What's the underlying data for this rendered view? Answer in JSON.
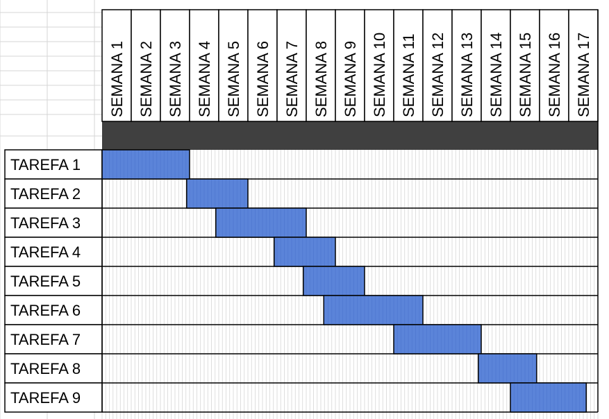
{
  "chart_data": {
    "type": "gantt",
    "weeks": [
      "SEMANA 1",
      "SEMANA 2",
      "SEMANA 3",
      "SEMANA 4",
      "SEMANA 5",
      "SEMANA 6",
      "SEMANA 7",
      "SEMANA 8",
      "SEMANA 9",
      "SEMANA 10",
      "SEMANA 11",
      "SEMANA 12",
      "SEMANA 13",
      "SEMANA 14",
      "SEMANA 15",
      "SEMANA 16",
      "SEMANA 17"
    ],
    "tasks": [
      {
        "label": "TAREFA 1",
        "start_week": 1.0,
        "end_week": 3.0
      },
      {
        "label": "TAREFA 2",
        "start_week": 3.9,
        "end_week": 5.0
      },
      {
        "label": "TAREFA 3",
        "start_week": 4.9,
        "end_week": 7.0
      },
      {
        "label": "TAREFA 4",
        "start_week": 6.9,
        "end_week": 8.0
      },
      {
        "label": "TAREFA 5",
        "start_week": 7.9,
        "end_week": 9.0
      },
      {
        "label": "TAREFA 6",
        "start_week": 8.6,
        "end_week": 11.0
      },
      {
        "label": "TAREFA 7",
        "start_week": 11.0,
        "end_week": 13.0
      },
      {
        "label": "TAREFA 8",
        "start_week": 13.9,
        "end_week": 14.9
      },
      {
        "label": "TAREFA 9",
        "start_week": 15.0,
        "end_week": 16.6
      }
    ],
    "grid": true,
    "colors": {
      "bar": "#5b84d9",
      "bar_border": "#000000",
      "header_band": "#404040",
      "gridline": "#d6d6d6",
      "cell_border": "#000000"
    }
  }
}
